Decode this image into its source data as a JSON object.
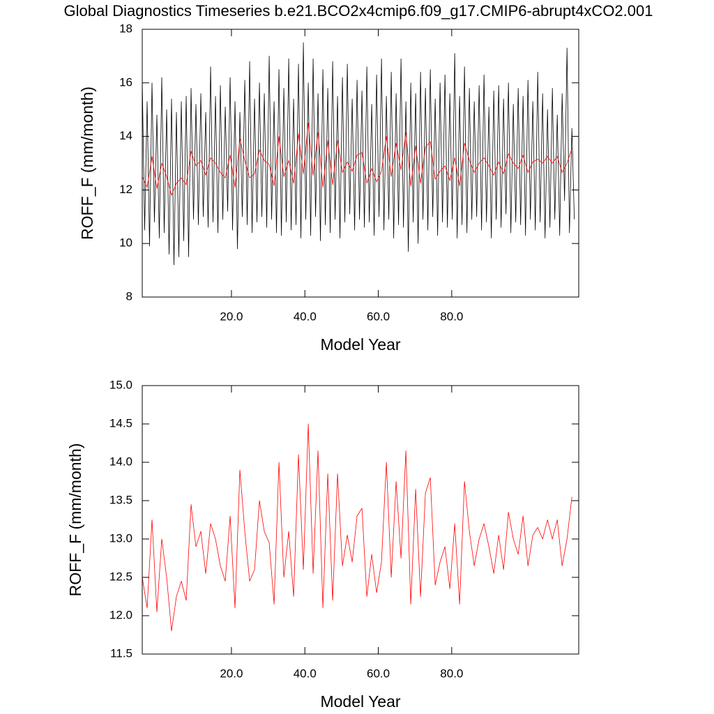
{
  "chart_data": [
    {
      "type": "line",
      "title": "Global Diagnostics Timeseries b.e21.BCO2x4cmip6.f09_g17.CMIP6-abrupt4xCO2.001",
      "xlabel": "Model Year",
      "ylabel": "ROFF_F (mm/month)",
      "xlim": [
        -4.3,
        114.6
      ],
      "xticks": [
        {
          "value": 20,
          "label": "20.0"
        },
        {
          "value": 40,
          "label": "40.0"
        },
        {
          "value": 60,
          "label": "60.0"
        },
        {
          "value": 80,
          "label": "80.0"
        }
      ],
      "ylim": [
        8,
        18
      ],
      "yticks": [
        8,
        10,
        12,
        14,
        16,
        18
      ],
      "series": [
        {
          "color": "#000000",
          "x": [
            -4.3,
            -3.64,
            -2.97,
            -2.31,
            -1.64,
            -0.98,
            -0.31,
            0.35,
            1.02,
            1.68,
            2.35,
            3.01,
            3.68,
            4.34,
            5.01,
            5.67,
            6.34,
            7.0,
            7.67,
            8.33,
            9.0,
            9.66,
            10.33,
            10.99,
            11.66,
            12.32,
            12.99,
            13.65,
            14.32,
            14.98,
            15.65,
            16.31,
            16.98,
            17.64,
            18.31,
            18.97,
            19.64,
            20.3,
            20.97,
            21.63,
            22.3,
            22.96,
            23.63,
            24.29,
            24.96,
            25.62,
            26.29,
            26.95,
            27.62,
            28.28,
            28.95,
            29.61,
            30.28,
            30.94,
            31.61,
            32.27,
            32.94,
            33.6,
            34.27,
            34.93,
            35.6,
            36.26,
            36.93,
            37.59,
            38.26,
            38.92,
            39.59,
            40.25,
            40.92,
            41.58,
            42.25,
            42.91,
            43.58,
            44.24,
            44.91,
            45.57,
            46.24,
            46.9,
            47.57,
            48.23,
            48.9,
            49.56,
            50.23,
            50.89,
            51.56,
            52.22,
            52.89,
            53.55,
            54.22,
            54.88,
            55.55,
            56.21,
            56.88,
            57.54,
            58.21,
            58.87,
            59.54,
            60.2,
            60.87,
            61.53,
            62.2,
            62.86,
            63.53,
            64.19,
            64.86,
            65.52,
            66.19,
            66.85,
            67.52,
            68.18,
            68.85,
            69.51,
            70.18,
            70.84,
            71.51,
            72.17,
            72.84,
            73.5,
            74.17,
            74.83,
            75.5,
            76.16,
            76.83,
            77.49,
            78.16,
            78.82,
            79.49,
            80.15,
            80.82,
            81.48,
            82.15,
            82.81,
            83.48,
            84.14,
            84.81,
            85.47,
            86.14,
            86.8,
            87.47,
            88.13,
            88.8,
            89.46,
            90.13,
            90.79,
            91.46,
            92.12,
            92.79,
            93.45,
            94.12,
            94.78,
            95.45,
            96.11,
            96.78,
            97.44,
            98.11,
            98.77,
            99.44,
            100.1,
            100.77,
            101.43,
            102.1,
            102.76,
            103.43,
            104.09,
            104.76,
            105.42,
            106.09,
            106.75,
            107.42,
            108.08,
            108.75,
            109.41,
            110.08,
            110.74,
            111.41,
            112.07,
            112.74,
            113.4
          ],
          "values": [
            16.1,
            10.5,
            15.3,
            9.9,
            16.0,
            10.8,
            14.8,
            10.2,
            16.2,
            10.4,
            15.0,
            9.6,
            15.4,
            9.2,
            14.9,
            9.5,
            15.3,
            10.1,
            15.5,
            9.5,
            15.8,
            10.9,
            15.2,
            10.7,
            15.6,
            11.0,
            14.9,
            10.6,
            16.6,
            10.8,
            15.5,
            10.4,
            15.9,
            10.9,
            15.1,
            11.2,
            16.2,
            10.5,
            15.3,
            9.8,
            14.9,
            11.0,
            16.1,
            10.7,
            16.8,
            10.4,
            15.4,
            10.8,
            16.0,
            11.0,
            15.6,
            10.6,
            17.0,
            10.9,
            15.3,
            10.4,
            16.5,
            10.3,
            15.8,
            10.8,
            16.9,
            10.5,
            15.4,
            10.7,
            16.7,
            10.2,
            17.5,
            10.9,
            16.0,
            10.3,
            16.9,
            11.0,
            15.6,
            10.1,
            16.5,
            10.7,
            15.8,
            10.4,
            16.8,
            10.9,
            15.5,
            10.2,
            16.2,
            10.8,
            16.7,
            11.1,
            15.4,
            10.5,
            16.1,
            10.9,
            15.7,
            10.6,
            16.6,
            10.8,
            15.2,
            10.3,
            16.3,
            11.0,
            16.9,
            10.5,
            15.5,
            10.9,
            16.4,
            10.2,
            15.6,
            10.7,
            16.9,
            10.6,
            15.3,
            9.7,
            16.0,
            10.8,
            15.6,
            10.0,
            16.4,
            10.9,
            15.8,
            10.5,
            16.5,
            11.0,
            15.4,
            10.3,
            16.0,
            10.8,
            16.3,
            10.6,
            15.6,
            10.9,
            17.1,
            10.2,
            15.5,
            10.7,
            16.6,
            10.4,
            15.8,
            10.9,
            15.3,
            11.0,
            15.9,
            10.5,
            16.3,
            10.8,
            15.1,
            10.2,
            15.7,
            10.9,
            15.9,
            10.6,
            15.4,
            11.1,
            16.0,
            10.4,
            15.2,
            10.8,
            15.8,
            10.7,
            15.5,
            10.3,
            16.1,
            10.9,
            15.3,
            10.5,
            16.4,
            10.8,
            15.6,
            10.2,
            15.0,
            10.6,
            15.8,
            10.9,
            14.8,
            10.3,
            15.6,
            11.6,
            17.3,
            10.4,
            14.3,
            10.9
          ]
        },
        {
          "color": "#ff0000",
          "x": [
            -4.3,
            -2.97,
            -1.64,
            -0.31,
            1.02,
            2.35,
            3.68,
            5.01,
            6.34,
            7.67,
            9.0,
            10.33,
            11.66,
            12.99,
            14.32,
            15.65,
            16.98,
            18.31,
            19.64,
            20.97,
            22.3,
            23.63,
            24.96,
            26.29,
            27.62,
            28.95,
            30.28,
            31.61,
            32.94,
            34.27,
            35.6,
            36.93,
            38.26,
            39.59,
            40.92,
            42.25,
            43.58,
            44.91,
            46.24,
            47.57,
            48.9,
            50.23,
            51.56,
            52.89,
            54.22,
            55.55,
            56.88,
            58.21,
            59.54,
            60.87,
            62.2,
            63.53,
            64.86,
            66.19,
            67.52,
            68.85,
            70.18,
            71.51,
            72.84,
            74.17,
            75.5,
            76.83,
            78.16,
            79.49,
            80.82,
            82.15,
            83.48,
            84.81,
            86.14,
            87.47,
            88.8,
            90.13,
            91.46,
            92.79,
            94.12,
            95.45,
            96.78,
            98.11,
            99.44,
            100.77,
            102.1,
            103.43,
            104.76,
            106.09,
            107.42,
            108.75,
            110.08,
            111.41,
            112.74
          ],
          "values": [
            12.5,
            12.1,
            13.25,
            12.05,
            13.0,
            12.5,
            11.8,
            12.25,
            12.45,
            12.2,
            13.45,
            12.9,
            13.1,
            12.55,
            13.2,
            13.0,
            12.65,
            12.45,
            13.3,
            12.1,
            13.9,
            13.1,
            12.45,
            12.6,
            13.5,
            13.1,
            12.95,
            12.15,
            14.0,
            12.5,
            13.1,
            12.25,
            14.1,
            12.6,
            14.5,
            12.55,
            14.15,
            12.1,
            13.85,
            12.2,
            13.85,
            12.65,
            13.05,
            12.7,
            13.3,
            13.4,
            12.25,
            12.8,
            12.3,
            12.7,
            14.0,
            12.5,
            13.75,
            12.75,
            14.15,
            12.15,
            13.65,
            12.25,
            13.6,
            13.8,
            12.4,
            12.7,
            12.9,
            12.35,
            13.2,
            12.15,
            13.75,
            13.1,
            12.65,
            13.0,
            13.2,
            12.9,
            12.55,
            13.05,
            12.6,
            13.35,
            13.0,
            12.8,
            13.3,
            12.65,
            13.05,
            13.15,
            13.0,
            13.25,
            13.0,
            13.25,
            12.65,
            13.0,
            13.55
          ]
        }
      ]
    },
    {
      "type": "line",
      "xlabel": "Model Year",
      "ylabel": "ROFF_F (mm/month)",
      "xlim": [
        -4.3,
        114.6
      ],
      "xticks": [
        {
          "value": 20,
          "label": "20.0"
        },
        {
          "value": 40,
          "label": "40.0"
        },
        {
          "value": 60,
          "label": "60.0"
        },
        {
          "value": 80,
          "label": "80.0"
        }
      ],
      "ylim": [
        11.5,
        15
      ],
      "yticks": [
        11.5,
        {
          "value": 12,
          "label": "12.0"
        },
        12.5,
        {
          "value": 13,
          "label": "13.0"
        },
        13.5,
        {
          "value": 14,
          "label": "14.0"
        },
        14.5,
        {
          "value": 15,
          "label": "15.0"
        }
      ],
      "series": [
        {
          "color": "#ff0000",
          "x": [
            -4.3,
            -2.97,
            -1.64,
            -0.31,
            1.02,
            2.35,
            3.68,
            5.01,
            6.34,
            7.67,
            9.0,
            10.33,
            11.66,
            12.99,
            14.32,
            15.65,
            16.98,
            18.31,
            19.64,
            20.97,
            22.3,
            23.63,
            24.96,
            26.29,
            27.62,
            28.95,
            30.28,
            31.61,
            32.94,
            34.27,
            35.6,
            36.93,
            38.26,
            39.59,
            40.92,
            42.25,
            43.58,
            44.91,
            46.24,
            47.57,
            48.9,
            50.23,
            51.56,
            52.89,
            54.22,
            55.55,
            56.88,
            58.21,
            59.54,
            60.87,
            62.2,
            63.53,
            64.86,
            66.19,
            67.52,
            68.85,
            70.18,
            71.51,
            72.84,
            74.17,
            75.5,
            76.83,
            78.16,
            79.49,
            80.82,
            82.15,
            83.48,
            84.81,
            86.14,
            87.47,
            88.8,
            90.13,
            91.46,
            92.79,
            94.12,
            95.45,
            96.78,
            98.11,
            99.44,
            100.77,
            102.1,
            103.43,
            104.76,
            106.09,
            107.42,
            108.75,
            110.08,
            111.41,
            112.74
          ],
          "values": [
            12.5,
            12.1,
            13.25,
            12.05,
            13.0,
            12.5,
            11.8,
            12.25,
            12.45,
            12.2,
            13.45,
            12.9,
            13.1,
            12.55,
            13.2,
            13.0,
            12.65,
            12.45,
            13.3,
            12.1,
            13.9,
            13.1,
            12.45,
            12.6,
            13.5,
            13.1,
            12.95,
            12.15,
            14.0,
            12.5,
            13.1,
            12.25,
            14.1,
            12.6,
            14.5,
            12.55,
            14.15,
            12.1,
            13.85,
            12.2,
            13.85,
            12.65,
            13.05,
            12.7,
            13.3,
            13.4,
            12.25,
            12.8,
            12.3,
            12.7,
            14.0,
            12.5,
            13.75,
            12.75,
            14.15,
            12.15,
            13.65,
            12.25,
            13.6,
            13.8,
            12.4,
            12.7,
            12.9,
            12.35,
            13.2,
            12.15,
            13.75,
            13.1,
            12.65,
            13.0,
            13.2,
            12.9,
            12.55,
            13.05,
            12.6,
            13.35,
            13.0,
            12.8,
            13.3,
            12.65,
            13.05,
            13.15,
            13.0,
            13.25,
            13.0,
            13.25,
            12.65,
            13.0,
            13.55
          ]
        }
      ]
    }
  ]
}
